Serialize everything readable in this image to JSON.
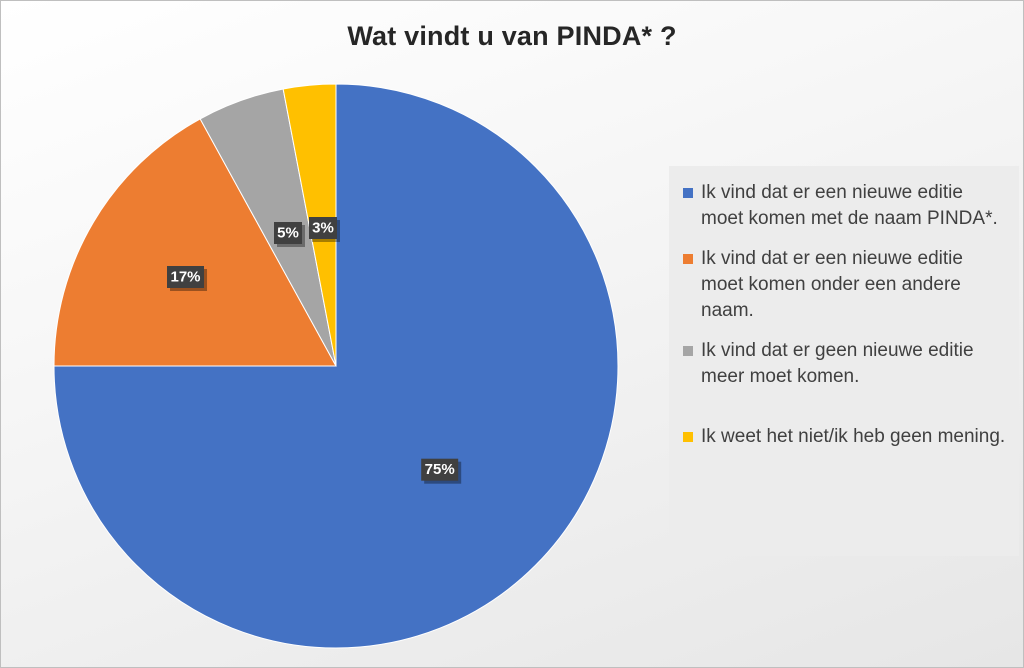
{
  "chart_data": {
    "type": "pie",
    "title": "Wat vindt u van PINDA* ?",
    "legend_position": "right",
    "slices": [
      {
        "label": "Ik vind dat er een nieuwe editie moet komen met de naam PINDA*.",
        "value": 75,
        "display": "75%",
        "color": "#4472C4"
      },
      {
        "label": "Ik vind dat er een nieuwe editie moet komen onder een andere naam.",
        "value": 17,
        "display": "17%",
        "color": "#ED7D31"
      },
      {
        "label": "Ik vind dat er geen nieuwe editie meer moet komen.",
        "value": 5,
        "display": "5%",
        "color": "#A5A5A5"
      },
      {
        "label": "Ik weet het niet/ik heb geen mening.",
        "value": 3,
        "display": "3%",
        "color": "#FFC000"
      }
    ]
  }
}
